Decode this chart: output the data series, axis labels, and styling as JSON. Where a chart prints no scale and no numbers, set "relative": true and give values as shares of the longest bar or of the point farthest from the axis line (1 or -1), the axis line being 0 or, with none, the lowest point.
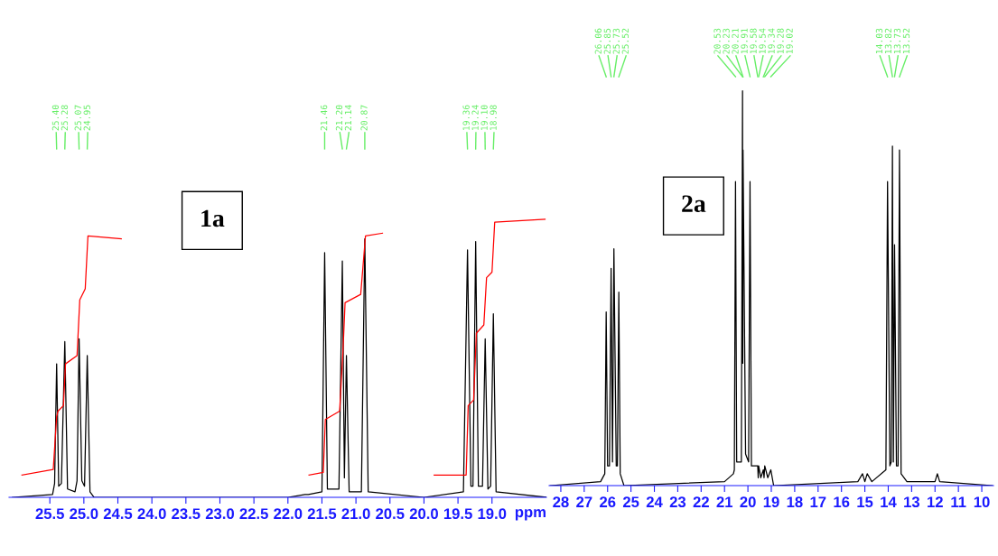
{
  "chart_data": [
    {
      "type": "line",
      "relative": true,
      "xlabel": "ppm",
      "xlim": [
        26.1,
        18.2
      ],
      "xticks": [
        {
          "value": 25.5,
          "label": "25.5"
        },
        {
          "value": 25,
          "label": "25.0"
        },
        {
          "value": 24.5,
          "label": "24.5"
        },
        {
          "value": 24,
          "label": "24.0"
        },
        {
          "value": 23.5,
          "label": "23.5"
        },
        {
          "value": 23,
          "label": "23.0"
        },
        {
          "value": 22.5,
          "label": "22.5"
        },
        {
          "value": 22,
          "label": "22.0"
        },
        {
          "value": 21.5,
          "label": "21.5"
        },
        {
          "value": 21,
          "label": "21.0"
        },
        {
          "value": 20.5,
          "label": "20.5"
        },
        {
          "value": 20,
          "label": "20.0"
        },
        {
          "value": 19.5,
          "label": "19.5"
        },
        {
          "value": 19,
          "label": "19.0"
        }
      ],
      "series": [
        {
          "color": "#000000",
          "x": [
            26.05,
            25.46,
            25.43,
            25.4,
            25.37,
            25.33,
            25.28,
            25.24,
            25.13,
            25.1,
            25.07,
            25.03,
            24.99,
            24.95,
            24.91,
            24.85,
            22.0,
            21.75,
            21.7,
            21.5,
            21.46,
            21.42,
            21.25,
            21.2,
            21.17,
            21.14,
            21.1,
            20.92,
            20.87,
            20.82,
            20.0,
            19.42,
            19.36,
            19.31,
            19.28,
            19.24,
            19.2,
            19.14,
            19.1,
            19.06,
            19.02,
            18.98,
            18.94,
            18.2
          ],
          "values": [
            0,
            0.01,
            0.05,
            0.48,
            0.04,
            0.05,
            0.56,
            0.03,
            0.02,
            0.06,
            0.57,
            0.06,
            0.04,
            0.51,
            0.02,
            0,
            0,
            0.01,
            0.01,
            0.02,
            0.88,
            0.03,
            0.03,
            0.85,
            0.07,
            0.51,
            0.02,
            0.02,
            0.93,
            0.02,
            0,
            0.02,
            0.89,
            0.04,
            0.04,
            0.92,
            0.04,
            0.04,
            0.57,
            0.03,
            0.04,
            0.66,
            0.02,
            0
          ]
        },
        {
          "color": "#ff0000",
          "x": [
            25.91,
            25.45,
            25.4,
            25.38,
            25.3,
            25.27,
            25.1,
            25.06,
            24.98,
            24.94,
            24.45
          ],
          "values": [
            0.08,
            0.1,
            0.29,
            0.31,
            0.33,
            0.48,
            0.51,
            0.71,
            0.75,
            0.94,
            0.93
          ]
        },
        {
          "color": "#ff0000",
          "x": [
            21.69,
            21.48,
            21.45,
            21.24,
            21.19,
            21.16,
            20.93,
            20.86,
            20.61
          ],
          "values": [
            0.08,
            0.09,
            0.28,
            0.31,
            0.53,
            0.7,
            0.73,
            0.94,
            0.95
          ]
        },
        {
          "color": "#ff0000",
          "x": [
            19.85,
            19.38,
            19.35,
            19.27,
            19.23,
            19.12,
            19.08,
            19.0,
            18.96,
            18.22
          ],
          "values": [
            0.08,
            0.08,
            0.33,
            0.35,
            0.59,
            0.62,
            0.79,
            0.81,
            0.99,
            1.0
          ]
        }
      ],
      "annotations": [
        {
          "text": "25.40",
          "x": 25.4
        },
        {
          "text": "25.28",
          "x": 25.28
        },
        {
          "text": "25.07",
          "x": 25.07
        },
        {
          "text": "24.95",
          "x": 24.95
        },
        {
          "text": "21.46",
          "x": 21.46
        },
        {
          "text": "21.20",
          "x": 21.2
        },
        {
          "text": "21.14",
          "x": 21.14
        },
        {
          "text": "20.87",
          "x": 20.87
        },
        {
          "text": "19.36",
          "x": 19.36
        },
        {
          "text": "19.24",
          "x": 19.24
        },
        {
          "text": "19.10",
          "x": 19.1
        },
        {
          "text": "18.98",
          "x": 18.98
        },
        "1a"
      ]
    },
    {
      "type": "line",
      "relative": true,
      "xlim": [
        28.5,
        9.5
      ],
      "xticks": [
        28,
        27,
        26,
        25,
        24,
        23,
        22,
        21,
        20,
        19,
        18,
        17,
        16,
        15,
        14,
        13,
        12,
        11,
        10
      ],
      "series": [
        {
          "color": "#000000",
          "x": [
            28.45,
            26.3,
            26.12,
            26.06,
            26.0,
            25.92,
            25.85,
            25.79,
            25.73,
            25.63,
            25.58,
            25.52,
            25.46,
            25.3,
            21.0,
            20.62,
            20.58,
            20.53,
            20.48,
            20.28,
            20.23,
            20.22,
            20.21,
            20.1,
            19.97,
            19.91,
            19.85,
            19.58,
            19.56,
            19.54,
            19.45,
            19.34,
            19.31,
            19.28,
            19.15,
            19.02,
            18.9,
            15.3,
            15.1,
            15.0,
            14.9,
            14.7,
            14.1,
            14.03,
            13.93,
            13.87,
            13.82,
            13.78,
            13.73,
            13.65,
            13.58,
            13.52,
            13.45,
            13.2,
            12.0,
            11.9,
            11.8,
            9.55
          ],
          "values": [
            0,
            0.01,
            0.03,
            0.44,
            0.05,
            0.05,
            0.55,
            0.06,
            0.6,
            0.05,
            0.05,
            0.49,
            0.03,
            0,
            0.01,
            0.03,
            0.04,
            0.77,
            0.06,
            0.06,
            1.0,
            0.31,
            0.85,
            0.08,
            0.06,
            0.77,
            0.05,
            0.05,
            0.02,
            0.05,
            0.02,
            0.04,
            0.02,
            0.05,
            0.02,
            0.04,
            0,
            0.01,
            0.03,
            0.01,
            0.03,
            0.01,
            0.04,
            0.77,
            0.05,
            0.06,
            0.86,
            0.06,
            0.61,
            0.05,
            0.05,
            0.85,
            0.03,
            0.01,
            0.01,
            0.03,
            0.01,
            0
          ]
        }
      ],
      "annotations": [
        {
          "text": "26.06",
          "x": 26.06
        },
        {
          "text": "25.85",
          "x": 25.85
        },
        {
          "text": "25.73",
          "x": 25.73
        },
        {
          "text": "25.52",
          "x": 25.52
        },
        {
          "text": "20.53",
          "x": 20.53
        },
        {
          "text": "20.23",
          "x": 20.23
        },
        {
          "text": "20.21",
          "x": 20.21
        },
        {
          "text": "19.91",
          "x": 19.91
        },
        {
          "text": "19.58",
          "x": 19.58
        },
        {
          "text": "19.54",
          "x": 19.54
        },
        {
          "text": "19.34",
          "x": 19.34
        },
        {
          "text": "19.28",
          "x": 19.28
        },
        {
          "text": "19.02",
          "x": 19.02
        },
        {
          "text": "14.03",
          "x": 14.03
        },
        {
          "text": "13.82",
          "x": 13.82
        },
        {
          "text": "13.73",
          "x": 13.73
        },
        {
          "text": "13.52",
          "x": 13.52
        },
        "2a"
      ]
    }
  ]
}
